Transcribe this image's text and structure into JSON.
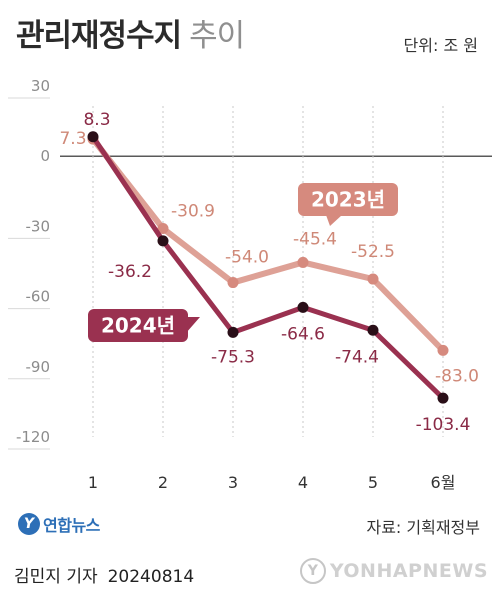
{
  "header": {
    "title_main": "관리재정수지",
    "title_sub": "추이",
    "unit": "단위: 조 원"
  },
  "chart_data": {
    "type": "line",
    "categories": [
      "1",
      "2",
      "3",
      "4",
      "5",
      "6월"
    ],
    "ylim": [
      -120,
      30
    ],
    "yticks": [
      30,
      0,
      -30,
      -60,
      -90,
      -120
    ],
    "grid": false,
    "series": [
      {
        "name": "2023년",
        "values": [
          7.3,
          -30.9,
          -54.0,
          -45.4,
          -52.5,
          -83.0
        ],
        "labels": [
          "7.3",
          "-30.9",
          "-54.0",
          "-45.4",
          "-52.5",
          "-83.0"
        ],
        "color": "#dea196",
        "marker_color": "#d68a7e",
        "label_color": "#cf8877"
      },
      {
        "name": "2024년",
        "values": [
          8.3,
          -36.2,
          -75.3,
          -64.6,
          -74.4,
          -103.4
        ],
        "labels": [
          "8.3",
          "-36.2",
          "-75.3",
          "-64.6",
          "-74.4",
          "-103.4"
        ],
        "color": "#9a3150",
        "marker_color": "#2a0f18",
        "label_color": "#8a2a46"
      }
    ],
    "legend_placement": "inline"
  },
  "footer": {
    "logo_mark": "Y",
    "logo_text": "연합뉴스",
    "source": "자료: 기획재정부",
    "reporter": "김민지 기자",
    "date": "20240814",
    "watermark_mark": "Y",
    "watermark_text": "YONHAPNEWS"
  }
}
